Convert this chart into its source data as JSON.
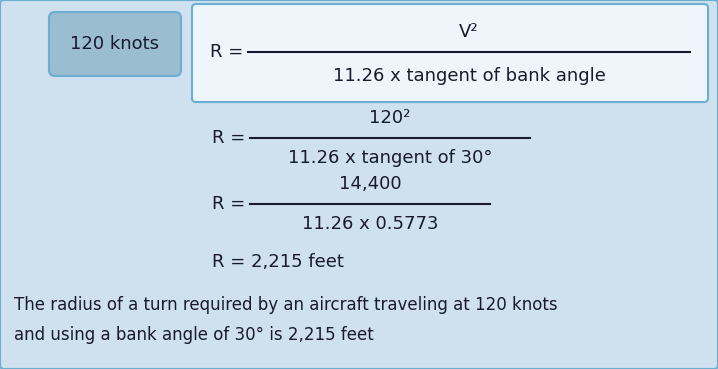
{
  "bg_color": "#cfe0ef",
  "border_color": "#6aafcf",
  "knots_box_bg": "#9bbdd0",
  "knots_box_border": "#6aafcf",
  "formula_box_bg": "#eef5fb",
  "formula_box_border": "#6aafcf",
  "text_color": "#1a1a2e",
  "label_text": "120 knots",
  "formula_num": "V²",
  "formula_den": "11.26 x tangent of bank angle",
  "step2_num": "120²",
  "step2_den": "11.26 x tangent of 30°",
  "step3_num": "14,400",
  "step3_den": "11.26 x 0.5773",
  "step4": "R = 2,215 feet",
  "caption_line1": "The radius of a turn required by an aircraft traveling at 120 knots",
  "caption_line2": "and using a bank angle of 30° is 2,215 feet",
  "font_size_label": 13,
  "font_size_formula": 13,
  "font_size_step": 13,
  "font_size_caption": 12,
  "figw": 7.18,
  "figh": 3.69,
  "dpi": 100
}
